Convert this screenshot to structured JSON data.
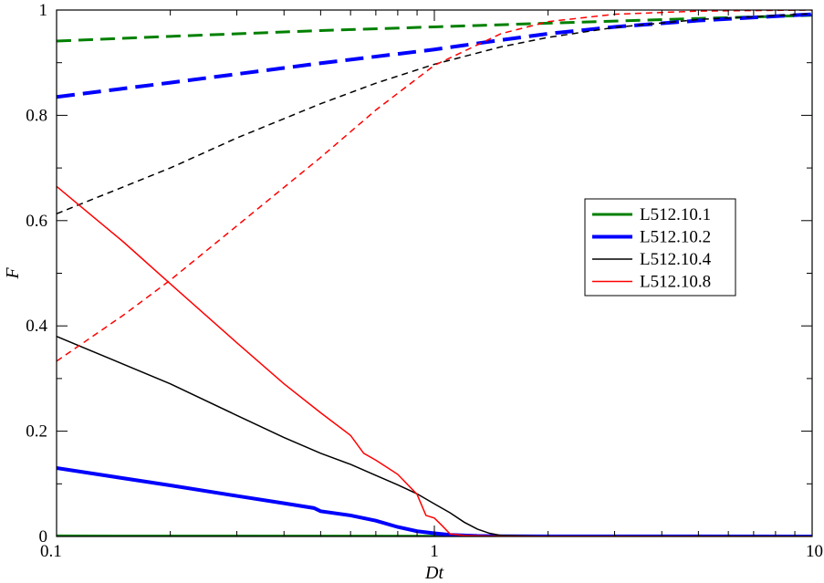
{
  "chart_data": {
    "type": "line",
    "xscale": "log",
    "xlim": [
      0.1,
      10
    ],
    "ylim": [
      0,
      1
    ],
    "xticks": [
      0.1,
      1,
      10
    ],
    "xtick_labels": [
      "0.1",
      "1",
      "10"
    ],
    "yticks": [
      0,
      0.2,
      0.4,
      0.6,
      0.8,
      1
    ],
    "ytick_labels": [
      "0",
      "0.2",
      "0.4",
      "0.6",
      "0.8",
      "1"
    ],
    "xlabel": "Dt",
    "ylabel": "F",
    "grid": false,
    "legend_position": "center-right",
    "legend": [
      "L512.10.1",
      "L512.10.2",
      "L512.10.4",
      "L512.10.8"
    ],
    "series": [
      {
        "name": "L512.10.1",
        "color": "#008000",
        "width": 3,
        "dash": "dashed",
        "x": [
          0.1,
          0.2,
          0.5,
          1,
          2,
          3,
          5,
          10
        ],
        "y": [
          0.941,
          0.95,
          0.961,
          0.968,
          0.975,
          0.979,
          0.984,
          0.99
        ]
      },
      {
        "name": "L512.10.1",
        "color": "#008000",
        "width": 3,
        "dash": "solid",
        "x": [
          0.1,
          0.3,
          1,
          3,
          10
        ],
        "y": [
          0.001,
          0.0008,
          0.0005,
          0.0003,
          0.0002
        ]
      },
      {
        "name": "L512.10.2",
        "color": "#0000ff",
        "width": 4,
        "dash": "dashed",
        "x": [
          0.1,
          0.2,
          0.5,
          1,
          1.5,
          2,
          3,
          5,
          10
        ],
        "y": [
          0.835,
          0.862,
          0.899,
          0.925,
          0.943,
          0.955,
          0.968,
          0.98,
          0.992
        ]
      },
      {
        "name": "L512.10.2",
        "color": "#0000ff",
        "width": 4,
        "dash": "solid",
        "x": [
          0.1,
          0.2,
          0.3,
          0.4,
          0.48,
          0.5,
          0.6,
          0.7,
          0.8,
          0.9,
          1.0,
          1.1,
          1.3,
          1.5,
          2,
          10
        ],
        "y": [
          0.13,
          0.097,
          0.077,
          0.063,
          0.054,
          0.048,
          0.04,
          0.03,
          0.018,
          0.01,
          0.006,
          0.003,
          0.001,
          0.0005,
          0.0002,
          0.0001
        ]
      },
      {
        "name": "L512.10.4",
        "color": "#000000",
        "width": 1.5,
        "dash": "dashed",
        "x": [
          0.1,
          0.2,
          0.3,
          0.5,
          0.7,
          1,
          1.5,
          2,
          3,
          5,
          10
        ],
        "y": [
          0.613,
          0.7,
          0.757,
          0.822,
          0.861,
          0.897,
          0.93,
          0.948,
          0.967,
          0.982,
          0.993
        ]
      },
      {
        "name": "L512.10.4",
        "color": "#000000",
        "width": 1.5,
        "dash": "solid",
        "x": [
          0.1,
          0.2,
          0.3,
          0.4,
          0.5,
          0.6,
          0.7,
          0.8,
          0.9,
          1.0,
          1.1,
          1.2,
          1.3,
          1.4,
          1.5,
          2,
          10
        ],
        "y": [
          0.38,
          0.29,
          0.23,
          0.188,
          0.158,
          0.137,
          0.116,
          0.098,
          0.081,
          0.062,
          0.045,
          0.027,
          0.014,
          0.006,
          0.002,
          0.0003,
          0.0001
        ]
      },
      {
        "name": "L512.10.8",
        "color": "#ff0000",
        "width": 1.5,
        "dash": "dashed",
        "x": [
          0.1,
          0.15,
          0.2,
          0.3,
          0.5,
          0.7,
          1.0,
          1.5,
          2,
          3,
          5,
          10
        ],
        "y": [
          0.333,
          0.42,
          0.487,
          0.59,
          0.72,
          0.81,
          0.895,
          0.955,
          0.978,
          0.992,
          0.998,
          1.0
        ]
      },
      {
        "name": "L512.10.8",
        "color": "#ff0000",
        "width": 1.5,
        "dash": "solid",
        "x": [
          0.1,
          0.15,
          0.2,
          0.3,
          0.4,
          0.5,
          0.6,
          0.65,
          0.7,
          0.8,
          0.9,
          0.95,
          1.0,
          1.05,
          1.1,
          1.2,
          1.5,
          10
        ],
        "y": [
          0.665,
          0.56,
          0.48,
          0.368,
          0.29,
          0.235,
          0.192,
          0.158,
          0.145,
          0.118,
          0.08,
          0.04,
          0.035,
          0.02,
          0.005,
          0.002,
          0.0005,
          0.0001
        ]
      }
    ]
  }
}
